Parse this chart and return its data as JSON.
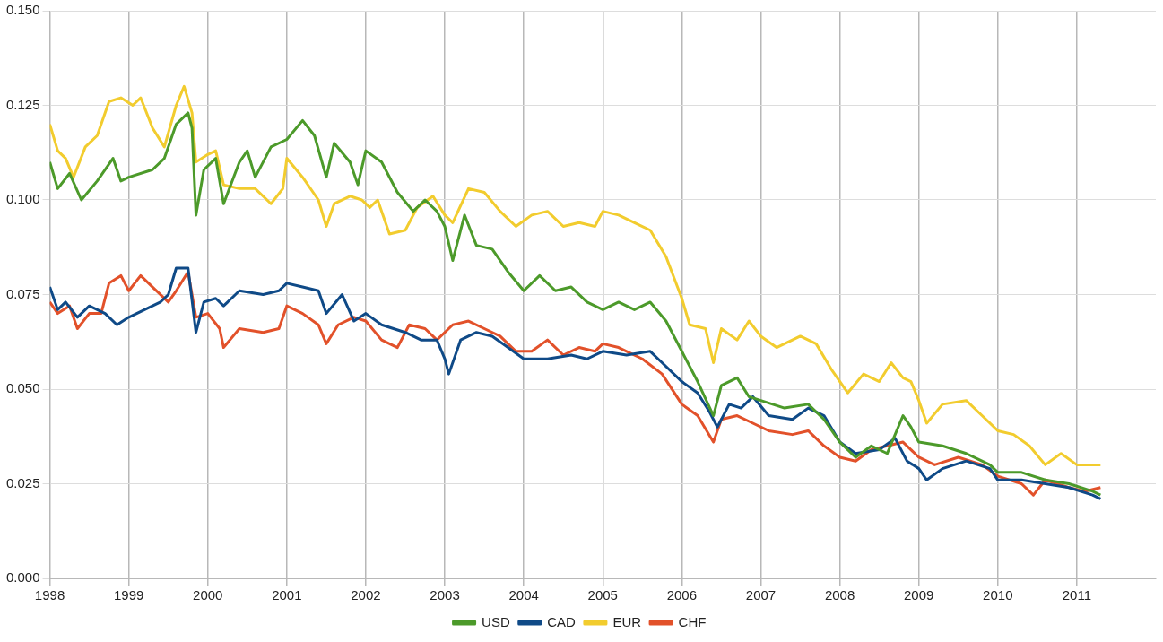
{
  "chart_data": {
    "type": "line",
    "xlim": [
      1998,
      2012
    ],
    "xticks": [
      1998,
      1999,
      2000,
      2001,
      2002,
      2003,
      2004,
      2005,
      2006,
      2007,
      2008,
      2009,
      2010,
      2011
    ],
    "ylim": [
      0,
      0.15
    ],
    "yticks": [
      {
        "value": 0,
        "label": "0.000"
      },
      {
        "value": 0.025,
        "label": "0.025"
      },
      {
        "value": 0.05,
        "label": "0.050"
      },
      {
        "value": 0.075,
        "label": "0.075"
      },
      {
        "value": 0.1,
        "label": "0.100"
      },
      {
        "value": 0.125,
        "label": "0.125"
      },
      {
        "value": 0.15,
        "label": "0.150"
      }
    ],
    "grid": true,
    "legend": "bottom",
    "marker": "none",
    "line_style": "solid",
    "series": [
      {
        "name": "USD",
        "color": "#4c9a2a",
        "x": [
          1998.0,
          1998.1,
          1998.25,
          1998.4,
          1998.6,
          1998.8,
          1998.9,
          1999.0,
          1999.3,
          1999.45,
          1999.6,
          1999.75,
          1999.8,
          1999.85,
          1999.95,
          2000.1,
          2000.2,
          2000.4,
          2000.5,
          2000.6,
          2000.8,
          2001.0,
          2001.2,
          2001.35,
          2001.5,
          2001.6,
          2001.8,
          2001.9,
          2002.0,
          2002.2,
          2002.4,
          2002.6,
          2002.75,
          2002.9,
          2003.0,
          2003.1,
          2003.25,
          2003.4,
          2003.6,
          2003.8,
          2004.0,
          2004.2,
          2004.4,
          2004.6,
          2004.8,
          2005.0,
          2005.2,
          2005.4,
          2005.6,
          2005.8,
          2006.0,
          2006.2,
          2006.4,
          2006.5,
          2006.7,
          2006.85,
          2007.0,
          2007.3,
          2007.6,
          2007.8,
          2008.0,
          2008.2,
          2008.4,
          2008.6,
          2008.7,
          2008.8,
          2008.9,
          2009.0,
          2009.3,
          2009.6,
          2009.9,
          2010.0,
          2010.3,
          2010.6,
          2010.9,
          2011.2,
          2011.3
        ],
        "values": [
          0.11,
          0.103,
          0.107,
          0.1,
          0.105,
          0.111,
          0.105,
          0.106,
          0.108,
          0.111,
          0.12,
          0.123,
          0.119,
          0.096,
          0.108,
          0.111,
          0.099,
          0.11,
          0.113,
          0.106,
          0.114,
          0.116,
          0.121,
          0.117,
          0.106,
          0.115,
          0.11,
          0.104,
          0.113,
          0.11,
          0.102,
          0.097,
          0.1,
          0.097,
          0.093,
          0.084,
          0.096,
          0.088,
          0.087,
          0.081,
          0.076,
          0.08,
          0.076,
          0.077,
          0.073,
          0.071,
          0.073,
          0.071,
          0.073,
          0.068,
          0.06,
          0.052,
          0.043,
          0.051,
          0.053,
          0.048,
          0.047,
          0.045,
          0.046,
          0.042,
          0.036,
          0.032,
          0.035,
          0.033,
          0.038,
          0.043,
          0.04,
          0.036,
          0.035,
          0.033,
          0.03,
          0.028,
          0.028,
          0.026,
          0.025,
          0.023,
          0.022
        ]
      },
      {
        "name": "CAD",
        "color": "#0f4a87",
        "x": [
          1998.0,
          1998.1,
          1998.2,
          1998.35,
          1998.5,
          1998.7,
          1998.85,
          1999.0,
          1999.2,
          1999.4,
          1999.5,
          1999.6,
          1999.75,
          1999.85,
          1999.95,
          2000.1,
          2000.2,
          2000.4,
          2000.7,
          2000.9,
          2001.0,
          2001.2,
          2001.4,
          2001.5,
          2001.7,
          2001.85,
          2002.0,
          2002.2,
          2002.5,
          2002.7,
          2002.9,
          2003.0,
          2003.05,
          2003.2,
          2003.4,
          2003.6,
          2003.8,
          2004.0,
          2004.3,
          2004.6,
          2004.8,
          2005.0,
          2005.3,
          2005.6,
          2005.75,
          2006.0,
          2006.2,
          2006.35,
          2006.45,
          2006.6,
          2006.75,
          2006.9,
          2007.1,
          2007.4,
          2007.6,
          2007.8,
          2008.0,
          2008.2,
          2008.5,
          2008.7,
          2008.85,
          2009.0,
          2009.1,
          2009.3,
          2009.6,
          2009.9,
          2010.0,
          2010.3,
          2010.6,
          2010.9,
          2011.2,
          2011.3
        ],
        "values": [
          0.077,
          0.071,
          0.073,
          0.069,
          0.072,
          0.07,
          0.067,
          0.069,
          0.071,
          0.073,
          0.075,
          0.082,
          0.082,
          0.065,
          0.073,
          0.074,
          0.072,
          0.076,
          0.075,
          0.076,
          0.078,
          0.077,
          0.076,
          0.07,
          0.075,
          0.068,
          0.07,
          0.067,
          0.065,
          0.063,
          0.063,
          0.058,
          0.054,
          0.063,
          0.065,
          0.064,
          0.061,
          0.058,
          0.058,
          0.059,
          0.058,
          0.06,
          0.059,
          0.06,
          0.057,
          0.052,
          0.049,
          0.044,
          0.04,
          0.046,
          0.045,
          0.048,
          0.043,
          0.042,
          0.045,
          0.043,
          0.036,
          0.033,
          0.034,
          0.037,
          0.031,
          0.029,
          0.026,
          0.029,
          0.031,
          0.029,
          0.026,
          0.026,
          0.025,
          0.024,
          0.022,
          0.021
        ]
      },
      {
        "name": "EUR",
        "color": "#f2cc2e",
        "x": [
          1998.0,
          1998.1,
          1998.2,
          1998.3,
          1998.45,
          1998.6,
          1998.75,
          1998.9,
          1999.05,
          1999.15,
          1999.3,
          1999.45,
          1999.6,
          1999.7,
          1999.8,
          1999.85,
          2000.0,
          2000.1,
          2000.2,
          2000.4,
          2000.6,
          2000.8,
          2000.95,
          2001.0,
          2001.2,
          2001.4,
          2001.5,
          2001.6,
          2001.8,
          2001.95,
          2002.05,
          2002.15,
          2002.3,
          2002.5,
          2002.65,
          2002.85,
          2003.0,
          2003.1,
          2003.3,
          2003.5,
          2003.7,
          2003.9,
          2004.1,
          2004.3,
          2004.5,
          2004.7,
          2004.9,
          2005.0,
          2005.2,
          2005.4,
          2005.6,
          2005.8,
          2006.0,
          2006.1,
          2006.3,
          2006.4,
          2006.5,
          2006.7,
          2006.85,
          2007.0,
          2007.2,
          2007.5,
          2007.7,
          2007.9,
          2008.1,
          2008.3,
          2008.5,
          2008.65,
          2008.8,
          2008.9,
          2009.0,
          2009.1,
          2009.3,
          2009.6,
          2009.8,
          2010.0,
          2010.2,
          2010.4,
          2010.6,
          2010.8,
          2011.0,
          2011.3
        ],
        "values": [
          0.12,
          0.113,
          0.111,
          0.106,
          0.114,
          0.117,
          0.126,
          0.127,
          0.125,
          0.127,
          0.119,
          0.114,
          0.125,
          0.13,
          0.123,
          0.11,
          0.112,
          0.113,
          0.104,
          0.103,
          0.103,
          0.099,
          0.103,
          0.111,
          0.106,
          0.1,
          0.093,
          0.099,
          0.101,
          0.1,
          0.098,
          0.1,
          0.091,
          0.092,
          0.098,
          0.101,
          0.096,
          0.094,
          0.103,
          0.102,
          0.097,
          0.093,
          0.096,
          0.097,
          0.093,
          0.094,
          0.093,
          0.097,
          0.096,
          0.094,
          0.092,
          0.085,
          0.074,
          0.067,
          0.066,
          0.057,
          0.066,
          0.063,
          0.068,
          0.064,
          0.061,
          0.064,
          0.062,
          0.055,
          0.049,
          0.054,
          0.052,
          0.057,
          0.053,
          0.052,
          0.047,
          0.041,
          0.046,
          0.047,
          0.043,
          0.039,
          0.038,
          0.035,
          0.03,
          0.033,
          0.03,
          0.03
        ]
      },
      {
        "name": "CHF",
        "color": "#e2512a",
        "x": [
          1998.0,
          1998.1,
          1998.25,
          1998.35,
          1998.5,
          1998.65,
          1998.75,
          1998.9,
          1999.0,
          1999.15,
          1999.3,
          1999.5,
          1999.6,
          1999.75,
          1999.85,
          2000.0,
          2000.15,
          2000.2,
          2000.4,
          2000.7,
          2000.9,
          2001.0,
          2001.2,
          2001.4,
          2001.5,
          2001.65,
          2001.85,
          2002.0,
          2002.2,
          2002.4,
          2002.55,
          2002.75,
          2002.9,
          2003.1,
          2003.3,
          2003.5,
          2003.7,
          2003.9,
          2004.1,
          2004.3,
          2004.5,
          2004.7,
          2004.9,
          2005.0,
          2005.2,
          2005.5,
          2005.75,
          2006.0,
          2006.2,
          2006.4,
          2006.5,
          2006.7,
          2006.9,
          2007.1,
          2007.4,
          2007.6,
          2007.8,
          2008.0,
          2008.2,
          2008.4,
          2008.6,
          2008.8,
          2009.0,
          2009.2,
          2009.5,
          2009.8,
          2010.0,
          2010.3,
          2010.45,
          2010.6,
          2010.9,
          2011.1,
          2011.3
        ],
        "values": [
          0.073,
          0.07,
          0.072,
          0.066,
          0.07,
          0.07,
          0.078,
          0.08,
          0.076,
          0.08,
          0.077,
          0.073,
          0.076,
          0.081,
          0.069,
          0.07,
          0.066,
          0.061,
          0.066,
          0.065,
          0.066,
          0.072,
          0.07,
          0.067,
          0.062,
          0.067,
          0.069,
          0.068,
          0.063,
          0.061,
          0.067,
          0.066,
          0.063,
          0.067,
          0.068,
          0.066,
          0.064,
          0.06,
          0.06,
          0.063,
          0.059,
          0.061,
          0.06,
          0.062,
          0.061,
          0.058,
          0.054,
          0.046,
          0.043,
          0.036,
          0.042,
          0.043,
          0.041,
          0.039,
          0.038,
          0.039,
          0.035,
          0.032,
          0.031,
          0.034,
          0.035,
          0.036,
          0.032,
          0.03,
          0.032,
          0.03,
          0.027,
          0.025,
          0.022,
          0.026,
          0.024,
          0.023,
          0.024
        ]
      }
    ]
  }
}
